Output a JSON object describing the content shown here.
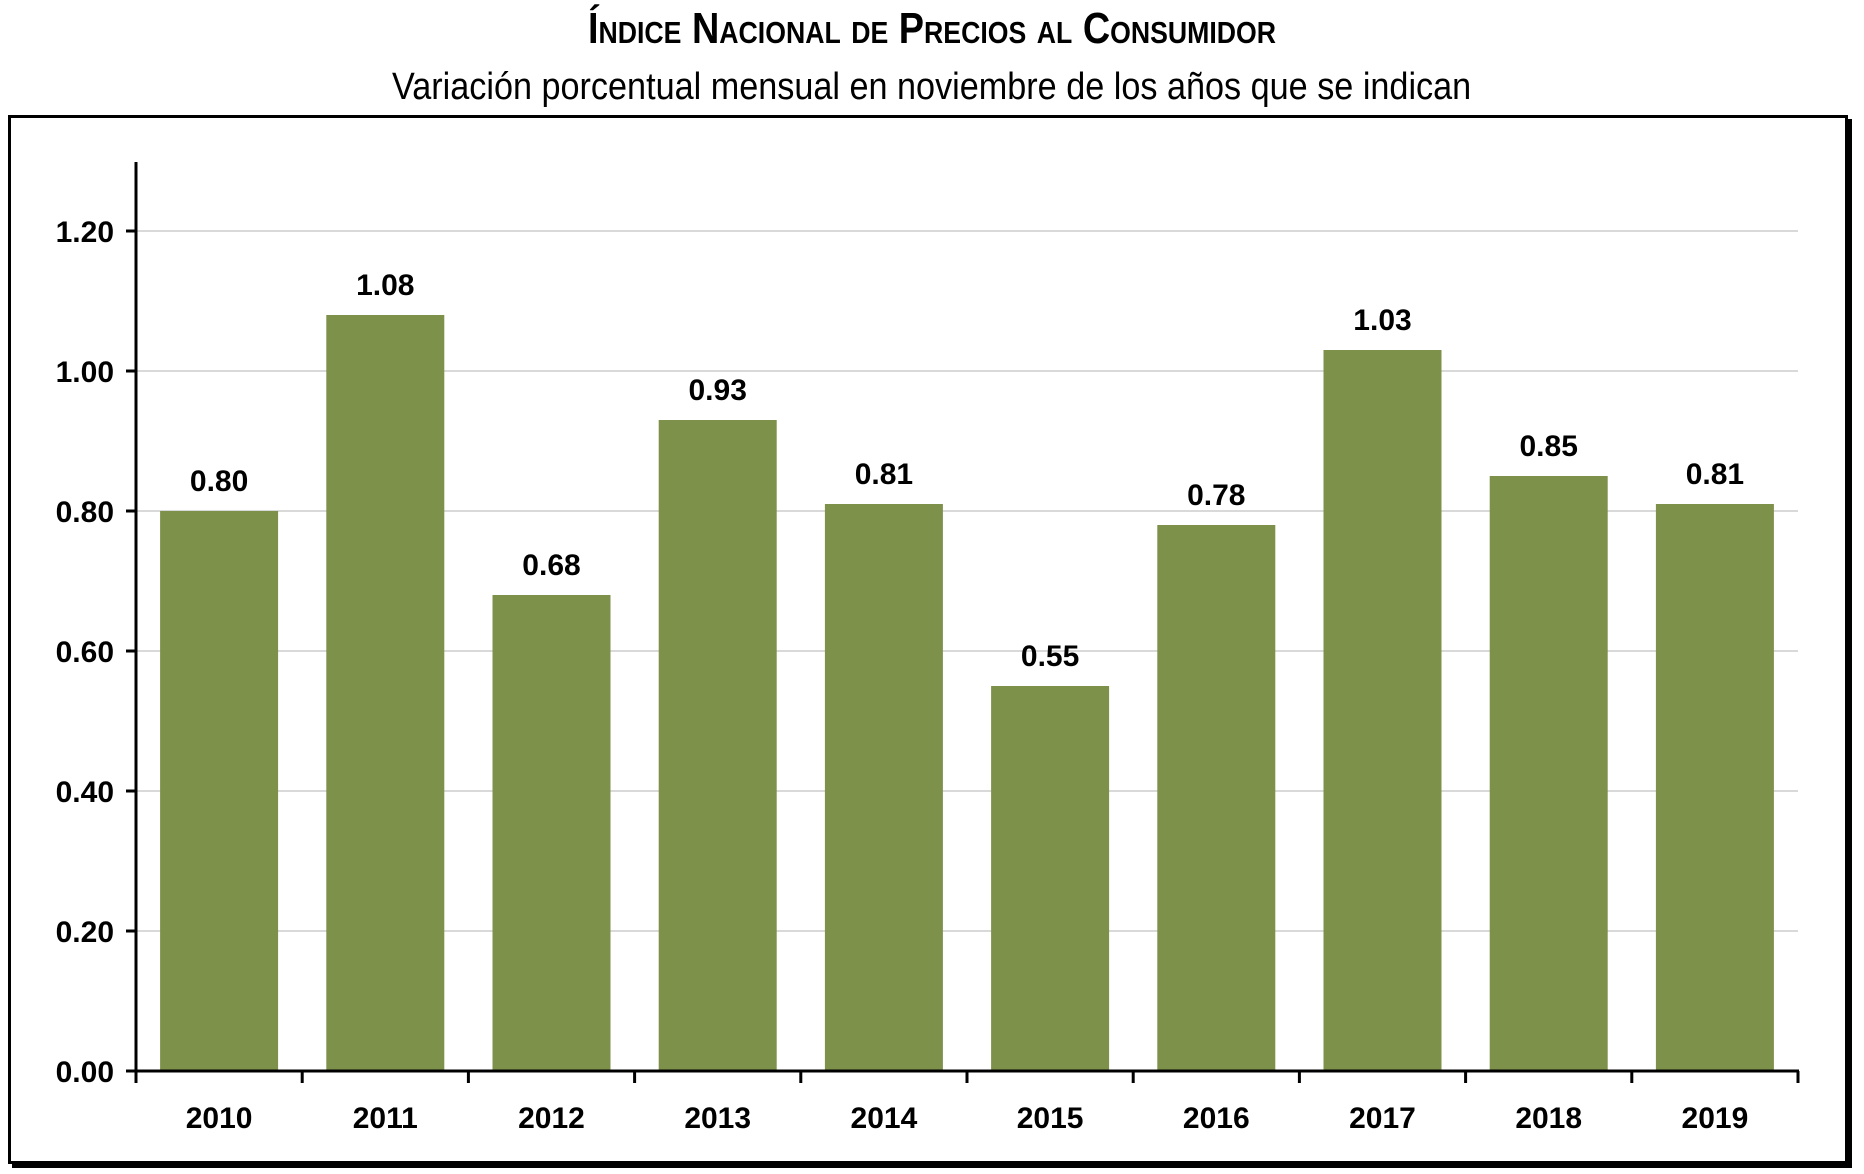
{
  "chart_data": {
    "type": "bar",
    "title": "Índice Nacional de Precios al Consumidor",
    "subtitle": "Variación porcentual mensual en noviembre de los años que se indican",
    "xlabel": "",
    "ylabel": "",
    "categories": [
      "2010",
      "2011",
      "2012",
      "2013",
      "2014",
      "2015",
      "2016",
      "2017",
      "2018",
      "2019"
    ],
    "values": [
      0.8,
      1.08,
      0.68,
      0.93,
      0.81,
      0.55,
      0.78,
      1.03,
      0.85,
      0.81
    ],
    "data_labels": [
      "0.80",
      "1.08",
      "0.68",
      "0.93",
      "0.81",
      "0.55",
      "0.78",
      "1.03",
      "0.85",
      "0.81"
    ],
    "yticks": [
      0.0,
      0.2,
      0.4,
      0.6,
      0.8,
      1.0,
      1.2
    ],
    "ytick_labels": [
      "0.00",
      "0.20",
      "0.40",
      "0.60",
      "0.80",
      "1.00",
      "1.20"
    ],
    "ylim": [
      0,
      1.3
    ],
    "grid": true,
    "legend": "none",
    "bar_color": "#7E914A",
    "grid_color": "#D9D9D9"
  }
}
